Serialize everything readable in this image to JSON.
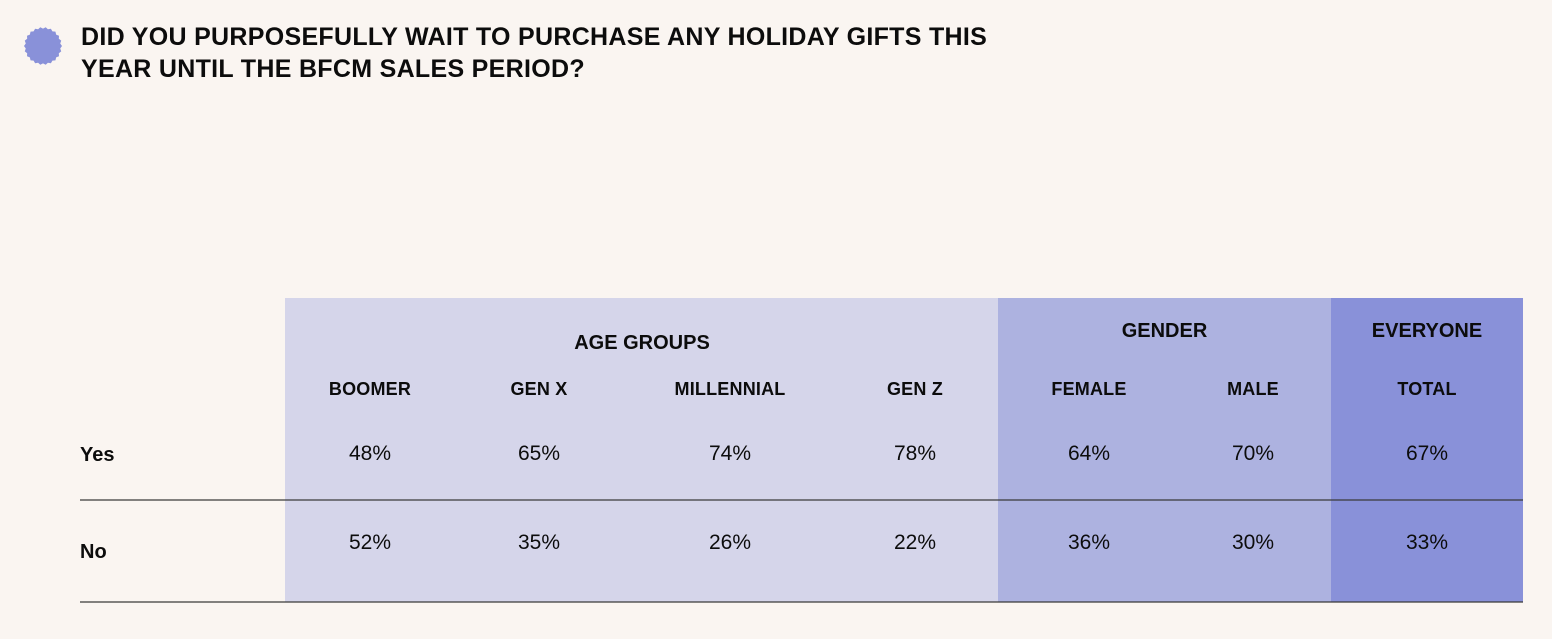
{
  "chart_data": {
    "type": "table",
    "title_lines": [
      "DID YOU PURPOSEFULLY WAIT TO PURCHASE ANY HOLIDAY GIFTS THIS",
      "YEAR UNTIL THE BFCM SALES PERIOD?"
    ],
    "column_groups": [
      {
        "label": "AGE GROUPS",
        "fill": "#d5d5ea",
        "columns": [
          "BOOMER",
          "GEN X",
          "MILLENNIAL",
          "GEN Z"
        ]
      },
      {
        "label": "GENDER",
        "fill": "#adb2e0",
        "columns": [
          "FEMALE",
          "MALE"
        ]
      },
      {
        "label": "EVERYONE",
        "fill": "#8991d9",
        "columns": [
          "TOTAL"
        ]
      }
    ],
    "rows": [
      {
        "label": "Yes",
        "values": [
          48,
          65,
          74,
          78,
          64,
          70,
          67
        ],
        "display": [
          "48%",
          "65%",
          "74%",
          "78%",
          "64%",
          "70%",
          "67%"
        ]
      },
      {
        "label": "No",
        "values": [
          52,
          35,
          26,
          22,
          36,
          30,
          33
        ],
        "display": [
          "52%",
          "35%",
          "26%",
          "22%",
          "36%",
          "30%",
          "33%"
        ]
      }
    ],
    "unit": "%"
  },
  "colors": {
    "background": "#faf5f1",
    "bullet": "#8991d9",
    "rule": "#3a3a3a",
    "text": "#0c0c0c"
  },
  "icons": {
    "bullet": "scalloped-circle-icon"
  }
}
